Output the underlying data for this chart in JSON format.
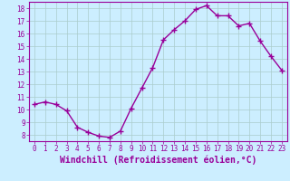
{
  "x": [
    0,
    1,
    2,
    3,
    4,
    5,
    6,
    7,
    8,
    9,
    10,
    11,
    12,
    13,
    14,
    15,
    16,
    17,
    18,
    19,
    20,
    21,
    22,
    23
  ],
  "y": [
    10.4,
    10.6,
    10.4,
    9.9,
    8.6,
    8.2,
    7.9,
    7.8,
    8.3,
    10.1,
    11.7,
    13.3,
    15.5,
    16.3,
    17.0,
    17.9,
    18.2,
    17.4,
    17.4,
    16.6,
    16.8,
    15.4,
    14.2,
    13.1
  ],
  "line_color": "#990099",
  "marker": "+",
  "marker_size": 4,
  "line_width": 1.0,
  "bg_color": "#cceeff",
  "grid_color": "#aacccc",
  "xlabel": "Windchill (Refroidissement éolien,°C)",
  "xlabel_color": "#990099",
  "tick_color": "#990099",
  "spine_color": "#990099",
  "ylim": [
    7.5,
    18.5
  ],
  "xlim": [
    -0.5,
    23.5
  ],
  "yticks": [
    8,
    9,
    10,
    11,
    12,
    13,
    14,
    15,
    16,
    17,
    18
  ],
  "xticks": [
    0,
    1,
    2,
    3,
    4,
    5,
    6,
    7,
    8,
    9,
    10,
    11,
    12,
    13,
    14,
    15,
    16,
    17,
    18,
    19,
    20,
    21,
    22,
    23
  ],
  "tick_fontsize": 5.5,
  "xlabel_fontsize": 7.0
}
